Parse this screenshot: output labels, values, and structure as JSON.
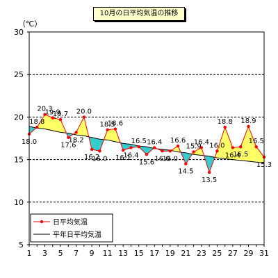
{
  "chart_data": {
    "type": "line",
    "title": "10月の日平均気温の推移",
    "unit_label": "（℃）",
    "x": [
      1,
      2,
      3,
      4,
      5,
      6,
      7,
      8,
      9,
      10,
      11,
      12,
      13,
      14,
      15,
      16,
      17,
      18,
      19,
      20,
      21,
      22,
      23,
      24,
      25,
      26,
      27,
      28,
      29,
      30,
      31
    ],
    "xlim": [
      1,
      31
    ],
    "ylim": [
      5,
      30
    ],
    "yticks": [
      5,
      10,
      15,
      20,
      25,
      30
    ],
    "grid": true,
    "legend_position": "bottom-left",
    "series": [
      {
        "name": "日平均気温",
        "color": "#ff0000",
        "values": [
          18.0,
          18.8,
          20.3,
          19.9,
          19.7,
          17.6,
          18.2,
          20.0,
          16.2,
          16.0,
          18.5,
          18.6,
          16.1,
          16.4,
          16.5,
          15.6,
          16.4,
          16.0,
          16.0,
          16.6,
          14.5,
          15.9,
          16.4,
          13.5,
          16.0,
          18.8,
          16.4,
          16.5,
          18.9,
          16.5,
          15.3
        ]
      },
      {
        "name": "平年日平均気温",
        "color": "#000000",
        "values": [
          18.9,
          18.7,
          18.6,
          18.4,
          18.2,
          18.1,
          17.9,
          17.8,
          17.6,
          17.4,
          17.3,
          17.1,
          16.9,
          16.8,
          16.6,
          16.5,
          16.3,
          16.2,
          16.1,
          15.9,
          15.8,
          15.6,
          15.5,
          15.4,
          15.2,
          15.1,
          15.0,
          14.9,
          14.8,
          14.7,
          14.6
        ]
      }
    ],
    "fill_above_color": "#ffff66",
    "fill_below_color": "#33cccc",
    "data_labels": [
      {
        "day": 1,
        "text": "18.0",
        "pos": "below"
      },
      {
        "day": 2,
        "text": "18.8",
        "pos": "above"
      },
      {
        "day": 3,
        "text": "20.3",
        "pos": "above"
      },
      {
        "day": 4,
        "text": "19.9",
        "pos": "above"
      },
      {
        "day": 5,
        "text": "19.7",
        "pos": "above"
      },
      {
        "day": 6,
        "text": "17.6",
        "pos": "below"
      },
      {
        "day": 7,
        "text": "18.2",
        "pos": "below"
      },
      {
        "day": 8,
        "text": "20.0",
        "pos": "above"
      },
      {
        "day": 9,
        "text": "16.2",
        "pos": "below"
      },
      {
        "day": 10,
        "text": "16.0",
        "pos": "below"
      },
      {
        "day": 11,
        "text": "18.5",
        "pos": "above"
      },
      {
        "day": 12,
        "text": "18.6",
        "pos": "above"
      },
      {
        "day": 13,
        "text": "16.1",
        "pos": "below"
      },
      {
        "day": 14,
        "text": "16.4",
        "pos": "below"
      },
      {
        "day": 15,
        "text": "16.5",
        "pos": "above"
      },
      {
        "day": 16,
        "text": "15.6",
        "pos": "below"
      },
      {
        "day": 17,
        "text": "16.4",
        "pos": "above"
      },
      {
        "day": 18,
        "text": "16.0",
        "pos": "below"
      },
      {
        "day": 19,
        "text": "16.0",
        "pos": "below"
      },
      {
        "day": 20,
        "text": "16.6",
        "pos": "above"
      },
      {
        "day": 21,
        "text": "14.5",
        "pos": "below"
      },
      {
        "day": 22,
        "text": "15.9",
        "pos": "above"
      },
      {
        "day": 23,
        "text": "16.4",
        "pos": "above"
      },
      {
        "day": 24,
        "text": "13.5",
        "pos": "below"
      },
      {
        "day": 25,
        "text": "16.0",
        "pos": "above"
      },
      {
        "day": 26,
        "text": "18.8",
        "pos": "above"
      },
      {
        "day": 27,
        "text": "16.4",
        "pos": "below"
      },
      {
        "day": 28,
        "text": "16.5",
        "pos": "below"
      },
      {
        "day": 29,
        "text": "18.9",
        "pos": "above"
      },
      {
        "day": 30,
        "text": "16.5",
        "pos": "above"
      },
      {
        "day": 31,
        "text": "15.3",
        "pos": "below"
      }
    ]
  }
}
